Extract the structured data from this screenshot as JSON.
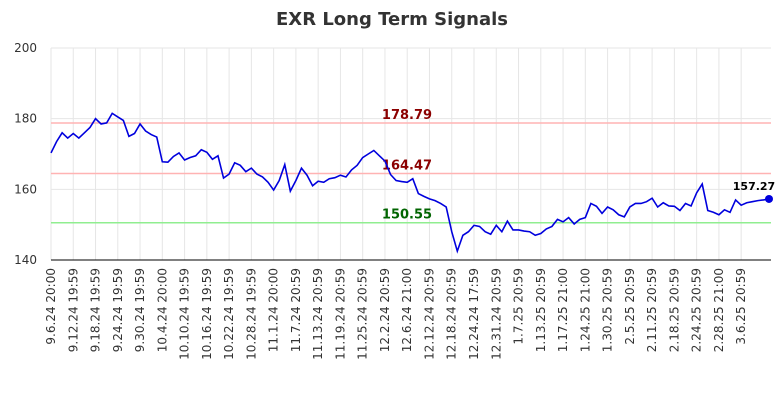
{
  "chart_data": {
    "type": "line",
    "title": "EXR Long Term Signals",
    "categories": [
      "9.6.24 20:00",
      null,
      null,
      null,
      "9.12.24 19:59",
      null,
      null,
      null,
      "9.18.24 19:59",
      null,
      null,
      null,
      "9.24.24 19:59",
      null,
      null,
      null,
      "9.30.24 19:59",
      null,
      null,
      null,
      "10.4.24 20:00",
      null,
      null,
      null,
      "10.10.24 19:59",
      null,
      null,
      null,
      "10.16.24 19:59",
      null,
      null,
      null,
      "10.22.24 19:59",
      null,
      null,
      null,
      "10.28.24 19:59",
      null,
      null,
      null,
      "11.1.24 20:00",
      null,
      null,
      null,
      "11.7.24 20:59",
      null,
      null,
      null,
      "11.13.24 20:59",
      null,
      null,
      null,
      "11.19.24 20:59",
      null,
      null,
      null,
      "11.25.24 20:59",
      null,
      null,
      null,
      "12.2.24 20:59",
      null,
      null,
      null,
      "12.6.24 21:00",
      null,
      null,
      null,
      "12.12.24 20:59",
      null,
      null,
      null,
      "12.18.24 20:59",
      null,
      null,
      null,
      "12.24.24 17:59",
      null,
      null,
      null,
      "12.31.24 20:59",
      null,
      null,
      null,
      "1.7.25 20:59",
      null,
      null,
      null,
      "1.13.25 20:59",
      null,
      null,
      null,
      "1.17.25 21:00",
      null,
      null,
      null,
      "1.24.25 21:00",
      null,
      null,
      null,
      "1.30.25 20:59",
      null,
      null,
      null,
      "2.5.25 20:59",
      null,
      null,
      null,
      "2.11.25 20:59",
      null,
      null,
      null,
      "2.18.25 20:59",
      null,
      null,
      null,
      "2.24.25 20:59",
      null,
      null,
      null,
      "2.28.25 21:00",
      null,
      null,
      null,
      "3.6.25 20:59",
      null,
      null,
      null,
      null,
      null
    ],
    "series": [
      {
        "color": "#0000dd",
        "values": [
          170.3,
          173.5,
          176,
          174.5,
          175.8,
          174.5,
          176,
          177.5,
          180,
          178.5,
          178.8,
          181.5,
          180.5,
          179.5,
          175,
          175.8,
          178.5,
          176.5,
          175.5,
          174.8,
          167.8,
          167.7,
          169.3,
          170.3,
          168.3,
          169,
          169.5,
          171.2,
          170.5,
          168.5,
          169.5,
          163.2,
          164.3,
          167.5,
          166.8,
          165,
          166,
          164.3,
          163.5,
          162,
          159.8,
          162.5,
          167,
          159.5,
          162.5,
          166,
          164,
          161,
          162.3,
          162,
          163,
          163.3,
          164,
          163.5,
          165.5,
          166.8,
          169,
          170,
          171,
          169.5,
          168,
          164.2,
          162.5,
          162.2,
          162,
          163,
          158.8,
          158,
          157.3,
          156.8,
          156,
          155,
          148,
          142.5,
          147,
          148,
          149.8,
          149.5,
          148,
          147.3,
          149.8,
          148,
          151,
          148.5,
          148.5,
          148.2,
          148,
          147,
          147.5,
          148.8,
          149.5,
          151.5,
          150.8,
          152,
          150.2,
          151.5,
          152,
          156,
          155.2,
          153.2,
          155,
          154.2,
          152.8,
          152.2,
          155,
          156,
          156,
          156.5,
          157.5,
          155,
          156.2,
          155.3,
          155.2,
          154,
          156,
          155.3,
          159,
          161.5,
          154,
          153.5,
          152.8,
          154.2,
          153.5,
          157,
          155.5,
          156.2,
          156.5,
          156.8,
          157,
          157.27
        ]
      }
    ],
    "hlines": [
      {
        "value": 178.79,
        "color": "#ffb3b3",
        "label_color": "#8b0000"
      },
      {
        "value": 164.47,
        "color": "#ffb3b3",
        "label_color": "#8b0000"
      },
      {
        "value": 150.55,
        "color": "#90ee90",
        "label_color": "#006400"
      }
    ],
    "ylim": [
      140,
      200
    ],
    "yticks": [
      140,
      160,
      180,
      200
    ],
    "grid": true
  }
}
